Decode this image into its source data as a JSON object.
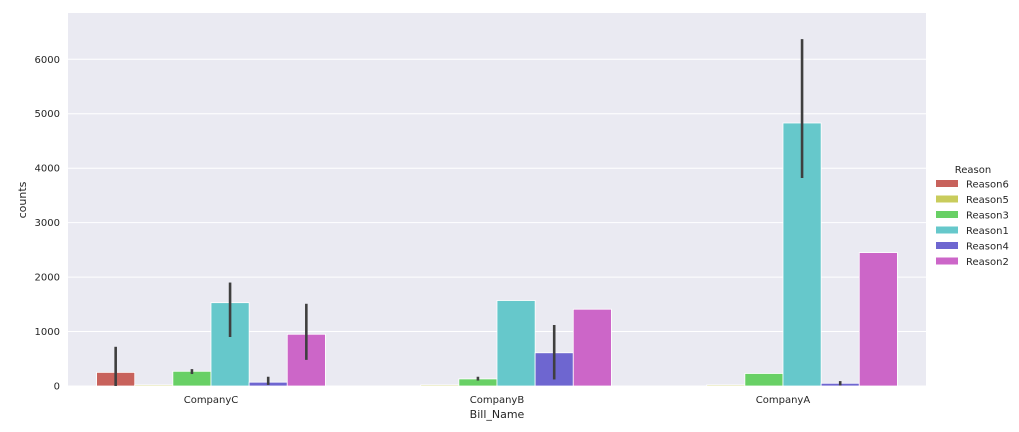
{
  "chart_data": {
    "type": "bar",
    "title": "",
    "xlabel": "Bill_Name",
    "ylabel": "counts",
    "categories": [
      "CompanyC",
      "CompanyB",
      "CompanyA"
    ],
    "ylim": [
      0,
      6850
    ],
    "yticks": [
      0,
      1000,
      2000,
      3000,
      4000,
      5000,
      6000
    ],
    "grid": true,
    "legend": {
      "title": "Reason",
      "placement": "right"
    },
    "series": [
      {
        "name": "Reason6",
        "color": "#c8625c",
        "values": [
          250,
          0,
          0
        ],
        "error": [
          [
            0,
            720
          ],
          null,
          null
        ]
      },
      {
        "name": "Reason5",
        "color": "#c9cc5c",
        "values": [
          20,
          20,
          20
        ],
        "error": [
          null,
          null,
          null
        ]
      },
      {
        "name": "Reason3",
        "color": "#68d065",
        "values": [
          270,
          130,
          230
        ],
        "error": [
          [
            220,
            310
          ],
          [
            100,
            170
          ],
          null
        ]
      },
      {
        "name": "Reason1",
        "color": "#66c8cb",
        "values": [
          1530,
          1570,
          4830
        ],
        "error": [
          [
            900,
            1900
          ],
          null,
          [
            3820,
            6370
          ]
        ]
      },
      {
        "name": "Reason4",
        "color": "#6e66d0",
        "values": [
          70,
          610,
          50
        ],
        "error": [
          [
            20,
            170
          ],
          [
            120,
            1120
          ],
          [
            10,
            90
          ]
        ]
      },
      {
        "name": "Reason2",
        "color": "#cc66c8",
        "values": [
          950,
          1410,
          2450
        ],
        "error": [
          [
            480,
            1510
          ],
          null,
          null
        ]
      }
    ]
  }
}
